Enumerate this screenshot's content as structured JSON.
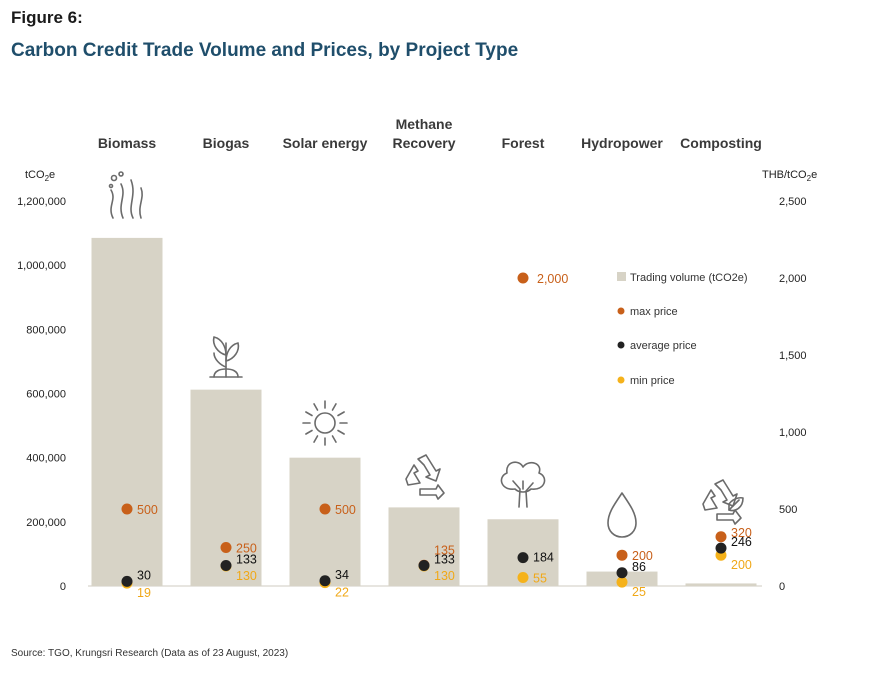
{
  "figure_label": "Figure 6:",
  "title": "Carbon Credit Trade Volume and Prices, by Project Type",
  "source": "Source: TGO, Krungsri Research (Data as of 23 August, 2023)",
  "chart_data": {
    "type": "bar",
    "categories": [
      "Biomass",
      "Biogas",
      "Solar energy",
      "Methane Recovery",
      "Forest",
      "Hydropower",
      "Composting"
    ],
    "category_lines": [
      [
        "Biomass"
      ],
      [
        "Biogas"
      ],
      [
        "Solar energy"
      ],
      [
        "Methane",
        "Recovery"
      ],
      [
        "Forest"
      ],
      [
        "Hydropower"
      ],
      [
        "Composting"
      ]
    ],
    "icons": [
      "seaweed-icon",
      "sprout-icon",
      "sun-icon",
      "recycle-icon",
      "tree-icon",
      "water-drop-icon",
      "recycle-leaf-icon"
    ],
    "left_axis": {
      "unit": "tCO₂e",
      "ylim": [
        0,
        1200000
      ],
      "ticks": [
        0,
        200000,
        400000,
        600000,
        800000,
        1000000,
        1200000
      ],
      "tick_labels": [
        "0",
        "200,000",
        "400,000",
        "600,000",
        "800,000",
        "1,000,000",
        "1,200,000"
      ]
    },
    "right_axis": {
      "unit": "THB/tCO₂e",
      "ylim": [
        0,
        2500
      ],
      "ticks": [
        0,
        500,
        1000,
        1500,
        2000,
        2500
      ],
      "tick_labels": [
        "0",
        "500",
        "1,000",
        "1,500",
        "2,000",
        "2,500"
      ]
    },
    "series": [
      {
        "name": "Trading volume (tCO2e)",
        "kind": "bar",
        "axis": "left",
        "color": "#d7d3c6",
        "values": [
          1085000,
          612000,
          400000,
          245000,
          208000,
          45000,
          8000
        ]
      },
      {
        "name": "max price",
        "kind": "dot",
        "axis": "right",
        "color": "#c8601a",
        "values": [
          500,
          250,
          500,
          135,
          2000,
          200,
          320
        ],
        "labels": [
          "500",
          "250",
          "500",
          "135",
          "2,000",
          "200",
          "320"
        ]
      },
      {
        "name": "average price",
        "kind": "dot",
        "axis": "right",
        "color": "#222222",
        "values": [
          30,
          133,
          34,
          133,
          184,
          86,
          246
        ],
        "labels": [
          "30",
          "133",
          "34",
          "133",
          "184",
          "86",
          "246"
        ]
      },
      {
        "name": "min price",
        "kind": "dot",
        "axis": "right",
        "color": "#f5b21b",
        "values": [
          19,
          130,
          22,
          130,
          55,
          25,
          200
        ],
        "labels": [
          "19",
          "130",
          "22",
          "130",
          "55",
          "25",
          "200"
        ]
      }
    ],
    "legend": {
      "position": "right-inside"
    },
    "grid": false
  }
}
